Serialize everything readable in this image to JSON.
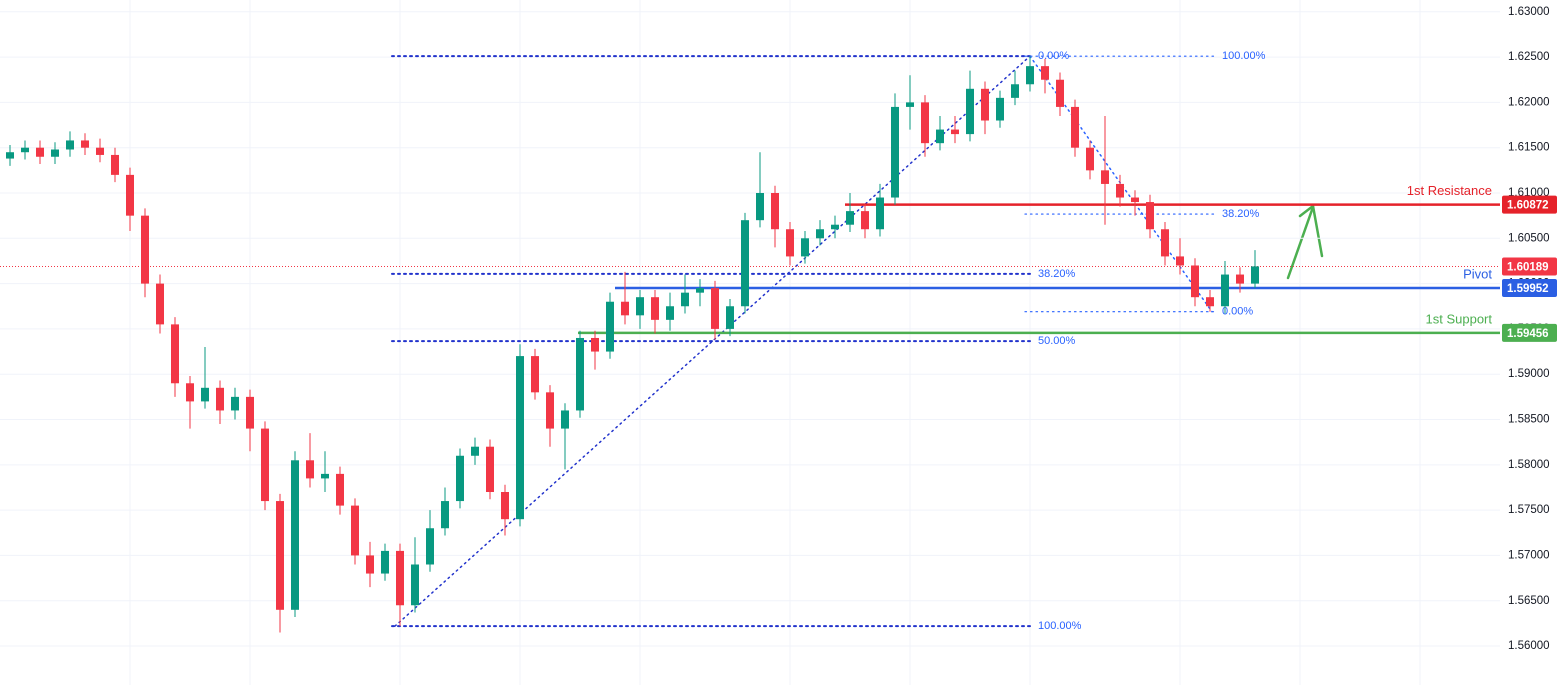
{
  "chart_data": {
    "type": "candlestick",
    "up_color": "#089981",
    "down_color": "#f23645",
    "open": [
      1.6138,
      1.6145,
      1.615,
      1.614,
      1.6148,
      1.6158,
      1.615,
      1.6142,
      1.612,
      1.6075,
      1.6,
      1.5955,
      1.589,
      1.587,
      1.5885,
      1.586,
      1.5875,
      1.584,
      1.576,
      1.564,
      1.5805,
      1.5785,
      1.579,
      1.5755,
      1.57,
      1.568,
      1.5705,
      1.5645,
      1.569,
      1.573,
      1.576,
      1.581,
      1.582,
      1.577,
      1.574,
      1.592,
      1.588,
      1.584,
      1.586,
      1.594,
      1.5925,
      1.598,
      1.5965,
      1.5985,
      1.596,
      1.5975,
      1.599,
      1.5995,
      1.595,
      1.5975,
      1.607,
      1.61,
      1.606,
      1.603,
      1.605,
      1.606,
      1.6065,
      1.608,
      1.606,
      1.6095,
      1.6195,
      1.62,
      1.6155,
      1.617,
      1.6165,
      1.6215,
      1.618,
      1.6205,
      1.622,
      1.624,
      1.6225,
      1.6195,
      1.615,
      1.6125,
      1.611,
      1.6095,
      1.609,
      1.606,
      1.603,
      1.602,
      1.5985,
      1.5975,
      1.601,
      1.6
    ],
    "high": [
      1.6153,
      1.6158,
      1.6158,
      1.6156,
      1.6168,
      1.6166,
      1.616,
      1.615,
      1.6128,
      1.6083,
      1.601,
      1.5963,
      1.5898,
      1.593,
      1.5893,
      1.5885,
      1.5883,
      1.5848,
      1.5768,
      1.5815,
      1.5835,
      1.5815,
      1.5798,
      1.5763,
      1.5715,
      1.5713,
      1.5713,
      1.572,
      1.575,
      1.5775,
      1.5818,
      1.583,
      1.5828,
      1.5778,
      1.5933,
      1.5928,
      1.5888,
      1.5868,
      1.5948,
      1.5948,
      1.599,
      1.6013,
      1.5993,
      1.5993,
      1.599,
      1.601,
      1.6005,
      1.6003,
      1.5983,
      1.6078,
      1.6145,
      1.6108,
      1.6068,
      1.6058,
      1.607,
      1.6075,
      1.61,
      1.6088,
      1.611,
      1.621,
      1.623,
      1.6208,
      1.6185,
      1.6185,
      1.6235,
      1.6223,
      1.6213,
      1.6235,
      1.6251,
      1.6248,
      1.6233,
      1.6203,
      1.6158,
      1.6185,
      1.612,
      1.6103,
      1.6098,
      1.6068,
      1.605,
      1.6028,
      1.5993,
      1.6025,
      1.6018,
      1.6037
    ],
    "low": [
      1.613,
      1.6137,
      1.6132,
      1.6132,
      1.614,
      1.6142,
      1.6134,
      1.6112,
      1.6058,
      1.5985,
      1.5945,
      1.5875,
      1.584,
      1.5862,
      1.5845,
      1.585,
      1.5815,
      1.575,
      1.5615,
      1.5632,
      1.5775,
      1.577,
      1.5745,
      1.569,
      1.5665,
      1.5672,
      1.5622,
      1.5637,
      1.5682,
      1.5722,
      1.5752,
      1.58,
      1.5762,
      1.5722,
      1.5732,
      1.5872,
      1.582,
      1.5795,
      1.5852,
      1.5905,
      1.5917,
      1.5955,
      1.595,
      1.5945,
      1.5948,
      1.5967,
      1.5975,
      1.5938,
      1.5942,
      1.5967,
      1.6062,
      1.604,
      1.602,
      1.6022,
      1.6042,
      1.605,
      1.6057,
      1.605,
      1.6052,
      1.6087,
      1.617,
      1.614,
      1.6147,
      1.6155,
      1.6157,
      1.6165,
      1.6172,
      1.6197,
      1.6212,
      1.621,
      1.6185,
      1.614,
      1.6115,
      1.6065,
      1.6085,
      1.6075,
      1.605,
      1.602,
      1.601,
      1.5975,
      1.5969,
      1.5967,
      1.599,
      1.5995
    ],
    "close": [
      1.6145,
      1.615,
      1.614,
      1.6148,
      1.6158,
      1.615,
      1.6142,
      1.612,
      1.6075,
      1.6,
      1.5955,
      1.589,
      1.587,
      1.5885,
      1.586,
      1.5875,
      1.584,
      1.576,
      1.564,
      1.5805,
      1.5785,
      1.579,
      1.5755,
      1.57,
      1.568,
      1.5705,
      1.5645,
      1.569,
      1.573,
      1.576,
      1.581,
      1.582,
      1.577,
      1.574,
      1.592,
      1.588,
      1.584,
      1.586,
      1.594,
      1.5925,
      1.598,
      1.5965,
      1.5985,
      1.596,
      1.5975,
      1.599,
      1.5995,
      1.595,
      1.5975,
      1.607,
      1.61,
      1.606,
      1.603,
      1.605,
      1.606,
      1.6065,
      1.608,
      1.606,
      1.6095,
      1.6195,
      1.62,
      1.6155,
      1.617,
      1.6165,
      1.6215,
      1.618,
      1.6205,
      1.622,
      1.624,
      1.6225,
      1.6195,
      1.615,
      1.6125,
      1.611,
      1.6095,
      1.609,
      1.606,
      1.603,
      1.602,
      1.5985,
      1.5975,
      1.601,
      1.6,
      1.6019
    ],
    "ylim": [
      1.5557,
      1.6313
    ],
    "yticks": [
      {
        "value": 1.56,
        "label": "1.56000"
      },
      {
        "value": 1.565,
        "label": "1.56500"
      },
      {
        "value": 1.57,
        "label": "1.57000"
      },
      {
        "value": 1.575,
        "label": "1.57500"
      },
      {
        "value": 1.58,
        "label": "1.58000"
      },
      {
        "value": 1.585,
        "label": "1.58500"
      },
      {
        "value": 1.59,
        "label": "1.59000"
      },
      {
        "value": 1.595,
        "label": "1.59500"
      },
      {
        "value": 1.6,
        "label": "1.60000"
      },
      {
        "value": 1.605,
        "label": "1.60500"
      },
      {
        "value": 1.61,
        "label": "1.61000"
      },
      {
        "value": 1.615,
        "label": "1.61500"
      },
      {
        "value": 1.62,
        "label": "1.62000"
      },
      {
        "value": 1.625,
        "label": "1.62500"
      },
      {
        "value": 1.63,
        "label": "1.63000"
      }
    ],
    "grid": true,
    "levels": [
      {
        "name": "1st Resistance",
        "value": 1.60872,
        "color": "#e5222a"
      },
      {
        "name": "Pivot",
        "value": 1.59952,
        "color": "#2b5fe3"
      },
      {
        "name": "1st Support",
        "value": 1.59456,
        "color": "#4caf50"
      }
    ],
    "last_price": {
      "value": 1.60189,
      "color": "#f23645"
    },
    "fibs": [
      {
        "start": 1.5622,
        "end": 1.6251,
        "color": "#2233cc",
        "levels": [
          {
            "value": 0,
            "label": "0.00%"
          },
          {
            "value": 38.2,
            "label": "38.20%"
          },
          {
            "value": 50,
            "label": "50.00%"
          },
          {
            "value": 100,
            "label": "100.00%"
          }
        ]
      },
      {
        "start": 1.6251,
        "end": 1.5969,
        "color": "#2962ff",
        "levels": [
          {
            "value": 0,
            "label": "0.00%"
          },
          {
            "value": 38.2,
            "label": "38.20%"
          },
          {
            "value": 100,
            "label": "100.00%"
          }
        ]
      }
    ]
  }
}
